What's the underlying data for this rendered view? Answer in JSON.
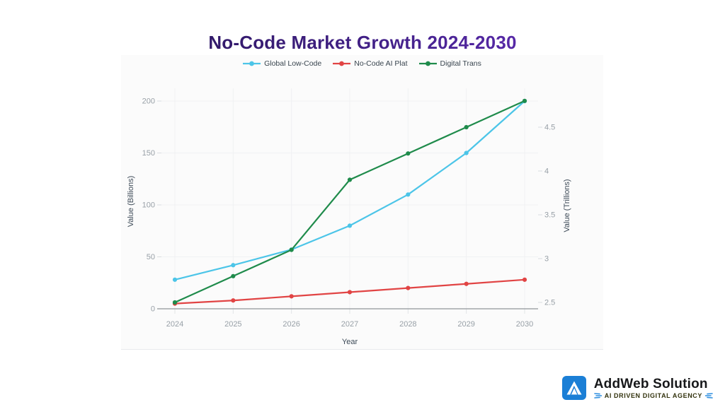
{
  "title": "No-Code Market Growth 2024-2030",
  "chart_data": {
    "type": "line",
    "categories": [
      "2024",
      "2025",
      "2026",
      "2027",
      "2028",
      "2029",
      "2030"
    ],
    "xlabel": "Year",
    "legend_position": "top",
    "grid": true,
    "left_axis": {
      "label": "Value (Billions)",
      "ticks": [
        0,
        50,
        100,
        150,
        200
      ],
      "range": [
        0,
        212
      ]
    },
    "right_axis": {
      "label": "Value (Trillions)",
      "ticks": [
        2.5,
        3,
        3.5,
        4,
        4.5
      ],
      "range": [
        2.43,
        4.95
      ]
    },
    "series": [
      {
        "name": "Global Low-Code",
        "axis": "left",
        "color": "#4cc5e8",
        "values": [
          28,
          42,
          57,
          80,
          110,
          150,
          200
        ]
      },
      {
        "name": "No-Code AI Plat",
        "axis": "left",
        "color": "#e14444",
        "values": [
          5,
          8,
          12,
          16,
          20,
          24,
          28
        ]
      },
      {
        "name": "Digital Trans",
        "axis": "right",
        "color": "#1f8b4b",
        "values": [
          2.5,
          2.8,
          3.1,
          3.9,
          4.2,
          4.5,
          4.8
        ]
      }
    ]
  },
  "branding": {
    "name": "AddWeb Solution",
    "tagline": "AI DRIVEN DIGITAL AGENCY",
    "logo_color": "#1b7fd6",
    "tagline_color": "#33330e",
    "accent_blue": "#2f8fe0"
  },
  "colors": {
    "title_gradient_start": "#1e1145",
    "title_gradient_mid": "#45228c",
    "title_gradient_end": "#7433d6",
    "card_bg": "#fbfbfb",
    "grid": "#f0f1f3",
    "axis_line": "#90959a",
    "tick_mark": "#dadde0",
    "tick_text": "#98a0a7",
    "axis_title_text": "#3d4a57",
    "legend_text": "#39454f"
  }
}
